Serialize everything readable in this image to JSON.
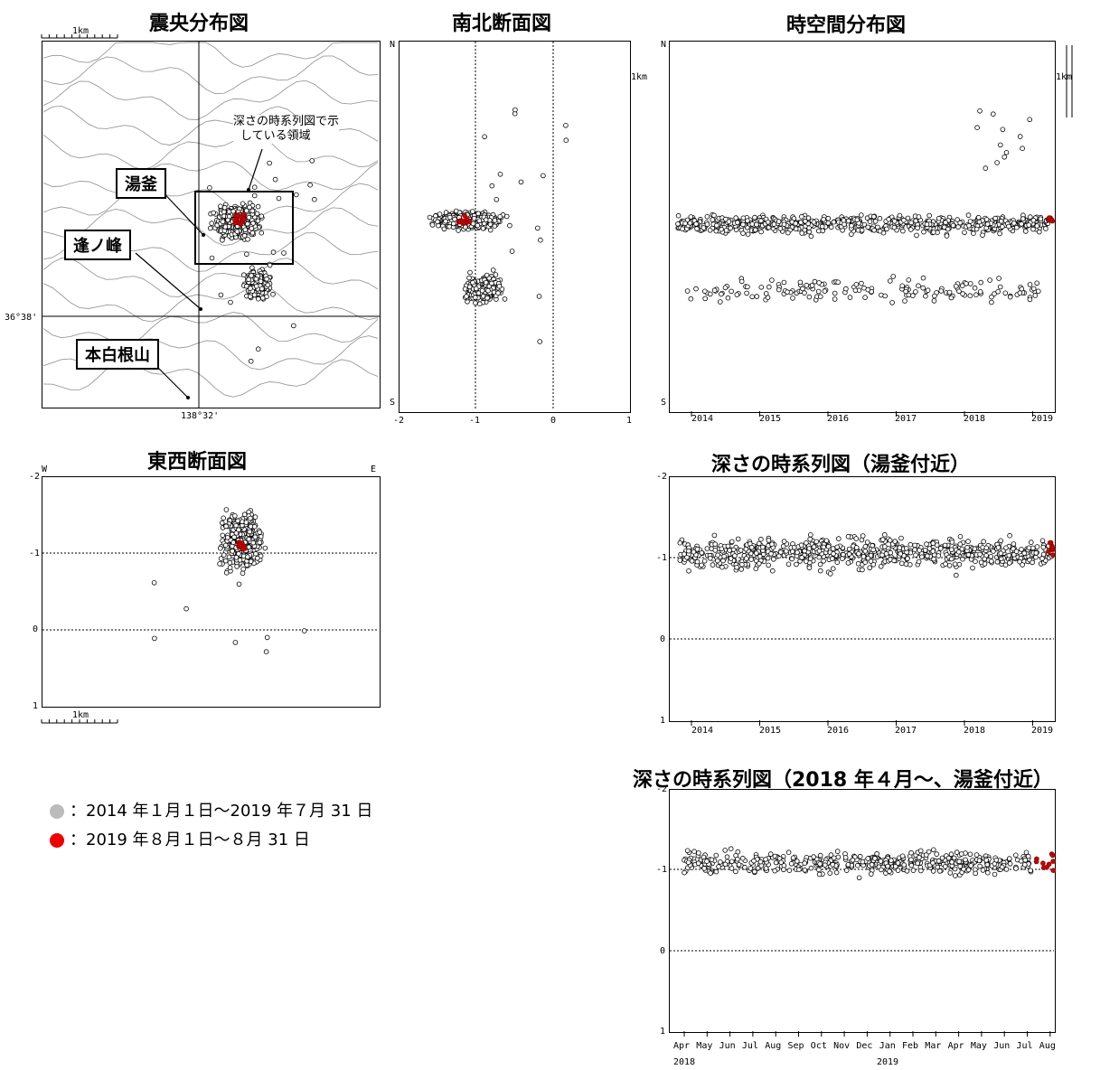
{
  "titles": {
    "epicenter": "震央分布図",
    "ns": "南北断面図",
    "spacetime": "時空間分布図",
    "ew": "東西断面図",
    "depth_ts": "深さの時系列図（湯釜付近）",
    "depth_ts2018": "深さの時系列図（2018 年４月～、湯釜付近）"
  },
  "map": {
    "scale_label": "1km",
    "lat_label": "36°38'",
    "lon_label": "138°32'",
    "labels": {
      "yugama": "湯釜",
      "aonomine": "逢ノ峰",
      "motoshirane": "本白根山"
    },
    "area_note": [
      "深さの時系列図で示",
      "している領域"
    ]
  },
  "ns_section": {
    "top": "N",
    "bottom": "S",
    "x_ticks": [
      "-2",
      "-1",
      "0",
      "1"
    ]
  },
  "spacetime_axis": {
    "top": "N",
    "bottom": "S",
    "scale_label": "1km",
    "x_ticks": [
      "2014",
      "2015",
      "2016",
      "2017",
      "2018",
      "2019"
    ]
  },
  "ew_section": {
    "left": "W",
    "right": "E",
    "scale_label": "1km",
    "y_ticks": [
      "-2",
      "-1",
      "0",
      "1"
    ]
  },
  "depth_ts_axis": {
    "y_ticks": [
      "-2",
      "-1",
      "0",
      "1"
    ],
    "x_ticks": [
      "2014",
      "2015",
      "2016",
      "2017",
      "2018",
      "2019"
    ]
  },
  "depth_ts2018_axis": {
    "y_ticks": [
      "-2",
      "-1",
      "0",
      "1"
    ],
    "months": [
      "Apr",
      "May",
      "Jun",
      "Jul",
      "Aug",
      "Sep",
      "Oct",
      "Nov",
      "Dec",
      "Jan",
      "Feb",
      "Mar",
      "Apr",
      "May",
      "Jun",
      "Jul",
      "Aug"
    ],
    "years": [
      "2018",
      "2019"
    ]
  },
  "legend": [
    {
      "color": "#bbbbbb",
      "text": "：2014 年１月１日～2019 年７月 31 日"
    },
    {
      "color": "#ee0000",
      "text": "：2019 年８月１日～８月 31 日"
    }
  ],
  "colors": {
    "old_events": "#c8c8c8",
    "new_events": "#cc0000",
    "contour": "#9a9a9a"
  },
  "chart_data": [
    {
      "type": "scatter",
      "title": "震央分布図",
      "description_series": [
        {
          "name": "",
          "x_range_km": [
            -2,
            1
          ],
          "cluster": "湯釜"
        }
      ]
    },
    {
      "type": "scatter",
      "title": "南北断面図",
      "xlim": [
        -2,
        1
      ]
    },
    {
      "type": "scatter",
      "title": "時空間分布図",
      "x": [
        2014,
        2019
      ]
    },
    {
      "type": "scatter",
      "title": "東西断面図",
      "ylim": [
        -2,
        1
      ]
    },
    {
      "type": "scatter",
      "title": "深さの時系列図（湯釜付近）",
      "ylim": [
        -2,
        1
      ],
      "x": [
        2014,
        2019
      ]
    },
    {
      "type": "scatter",
      "title": "深さの時系列図（2018 年４月～、湯釜付近）",
      "ylim": [
        -2,
        1
      ]
    }
  ]
}
